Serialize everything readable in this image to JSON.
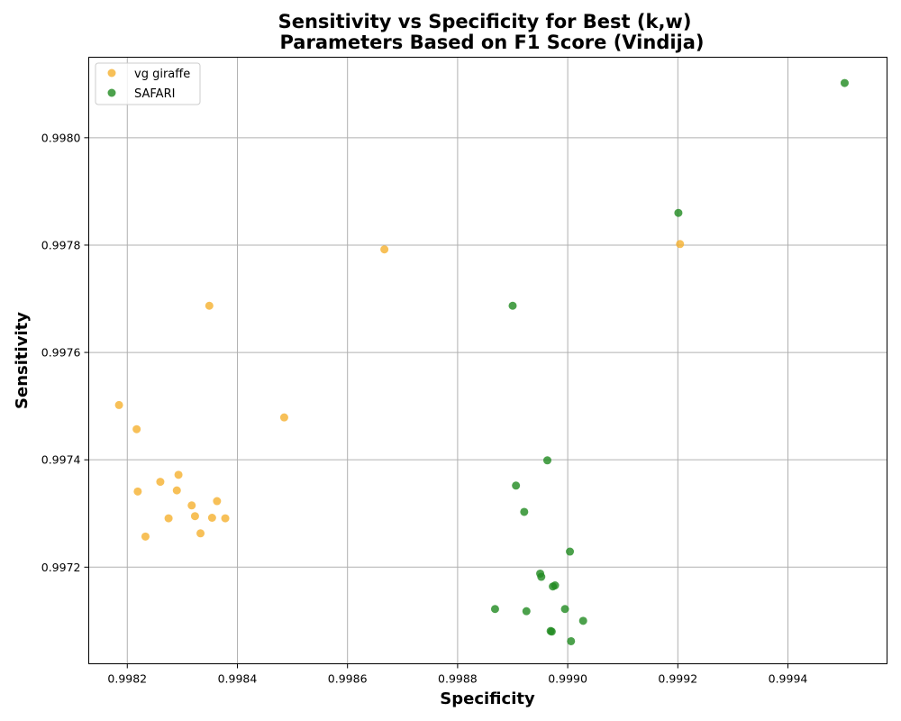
{
  "chart_data": {
    "type": "scatter",
    "title_lines": [
      "Sensitivity vs Specificity for Best (k,w)",
      "Parameters Based on F1 Score (Vindija)"
    ],
    "xlabel": "Specificity",
    "ylabel": "Sensitivity",
    "xlim": [
      0.99813,
      0.99958
    ],
    "ylim": [
      0.99702,
      0.99815
    ],
    "x_ticks": [
      0.9982,
      0.9984,
      0.9986,
      0.9988,
      0.999,
      0.9992,
      0.9994
    ],
    "x_tick_labels": [
      "0.9982",
      "0.9984",
      "0.9986",
      "0.9988",
      "0.9990",
      "0.9992",
      "0.9994"
    ],
    "y_ticks": [
      0.9972,
      0.9974,
      0.9976,
      0.9978,
      0.998
    ],
    "y_tick_labels": [
      "0.9972",
      "0.9974",
      "0.9976",
      "0.9978",
      "0.9980"
    ],
    "grid": true,
    "legend_position": "upper-left",
    "series": [
      {
        "name": "vg giraffe",
        "color": "#f5b02e",
        "points": [
          [
            0.998185,
            0.997502
          ],
          [
            0.998217,
            0.997457
          ],
          [
            0.998219,
            0.997341
          ],
          [
            0.998233,
            0.997257
          ],
          [
            0.99826,
            0.997359
          ],
          [
            0.998275,
            0.997291
          ],
          [
            0.99829,
            0.997343
          ],
          [
            0.998293,
            0.997372
          ],
          [
            0.998317,
            0.997315
          ],
          [
            0.998323,
            0.997295
          ],
          [
            0.998333,
            0.997263
          ],
          [
            0.998349,
            0.997687
          ],
          [
            0.998354,
            0.997292
          ],
          [
            0.998363,
            0.997323
          ],
          [
            0.998378,
            0.997291
          ],
          [
            0.998485,
            0.997479
          ],
          [
            0.998667,
            0.997792
          ],
          [
            0.999204,
            0.997802
          ]
        ]
      },
      {
        "name": "SAFARI",
        "color": "#1f8a1f",
        "points": [
          [
            0.998868,
            0.997122
          ],
          [
            0.9989,
            0.997687
          ],
          [
            0.998906,
            0.997352
          ],
          [
            0.998921,
            0.997303
          ],
          [
            0.998925,
            0.997118
          ],
          [
            0.99895,
            0.997188
          ],
          [
            0.998952,
            0.997182
          ],
          [
            0.998963,
            0.997399
          ],
          [
            0.998969,
            0.997081
          ],
          [
            0.998971,
            0.99708
          ],
          [
            0.998973,
            0.997164
          ],
          [
            0.998977,
            0.997166
          ],
          [
            0.998995,
            0.997122
          ],
          [
            0.999004,
            0.997229
          ],
          [
            0.999006,
            0.997062
          ],
          [
            0.999028,
            0.9971
          ],
          [
            0.999201,
            0.99786
          ],
          [
            0.999503,
            0.998102
          ]
        ]
      }
    ]
  }
}
